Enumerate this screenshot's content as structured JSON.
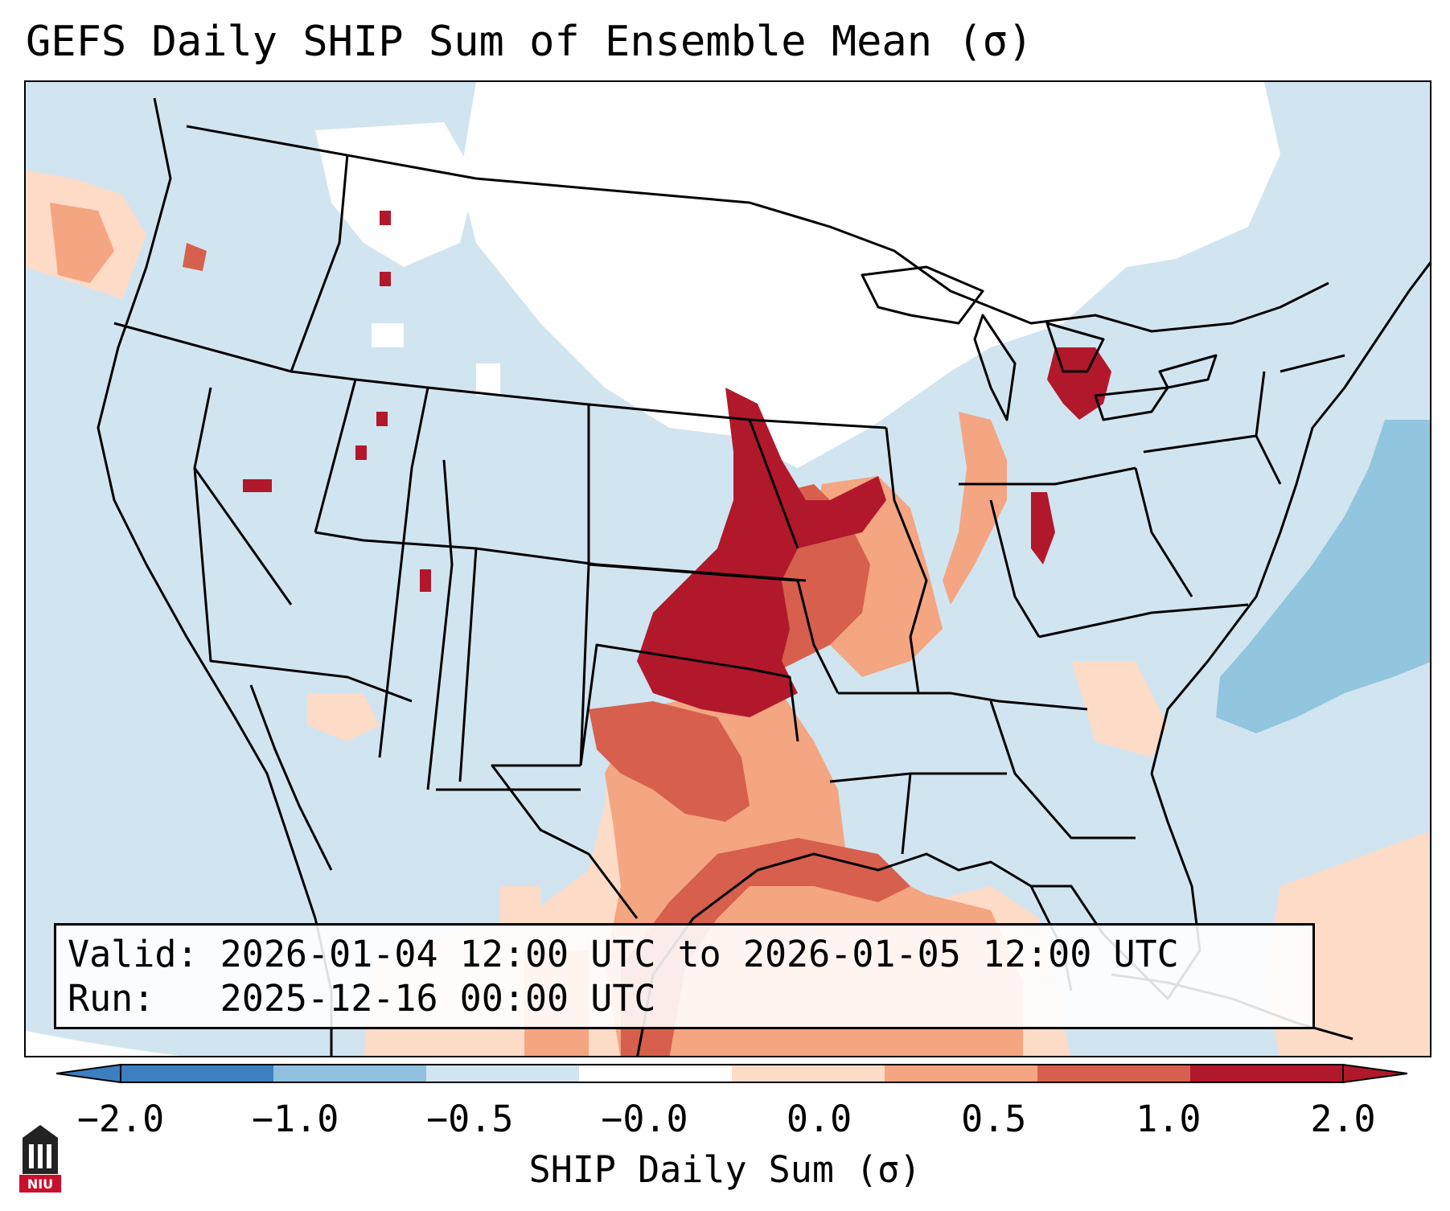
{
  "title": "GEFS Daily SHIP Sum of Ensemble Mean (σ)",
  "info": {
    "valid_label": "Valid:",
    "valid_value": "2026-01-04 12:00 UTC to 2026-01-05 12:00 UTC",
    "run_label": "Run:",
    "run_value": "2025-12-16 00:00 UTC"
  },
  "colorbar": {
    "label": "SHIP Daily Sum (σ)",
    "ticks": [
      "−2.0",
      "−1.0",
      "−0.5",
      "−0.0",
      "0.0",
      "0.5",
      "1.0",
      "2.0"
    ],
    "bins": [
      {
        "color": "#3b7fbf"
      },
      {
        "color": "#8fc0dd"
      },
      {
        "color": "#d1e5f0"
      },
      {
        "color": "#ffffff"
      },
      {
        "color": "#fddbc7"
      },
      {
        "color": "#f4a582"
      },
      {
        "color": "#d6604d"
      },
      {
        "color": "#b2182b"
      }
    ]
  },
  "colors": {
    "ocean": "#d1e5f0",
    "land": "#d1e5f0",
    "neutral": "#ffffff",
    "atlantic_blue": "#92c5de",
    "gulf_light": "#fddbc7",
    "anomaly_mid": "#f4a582",
    "anomaly_strong": "#d6604d",
    "anomaly_max": "#b2182b"
  },
  "logo": {
    "text": "NIU",
    "icon": "niu-logo-icon"
  }
}
